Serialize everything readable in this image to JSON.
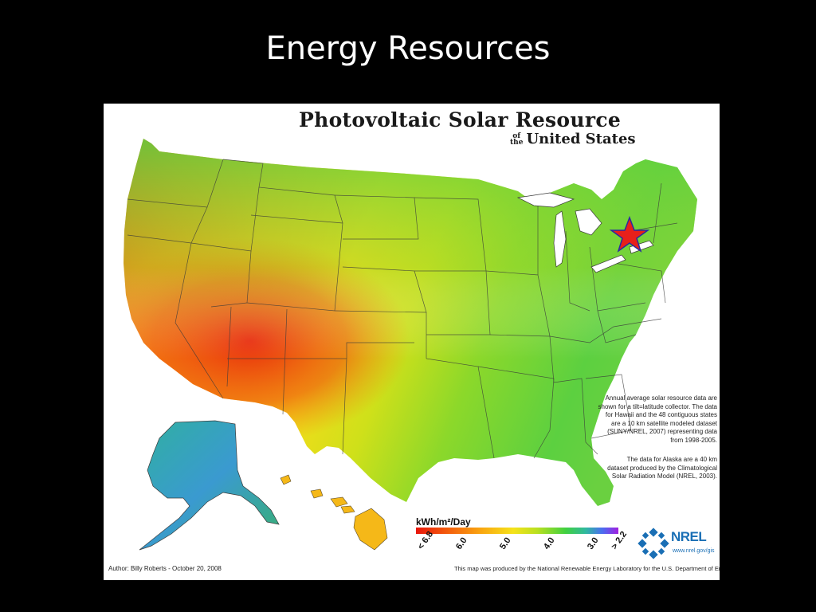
{
  "slide": {
    "title": "Energy Resources"
  },
  "map": {
    "title": "Photovoltaic Solar Resource",
    "subtitle_of": "of",
    "subtitle_the": "the",
    "subtitle_main": "United States",
    "note_primary": "Annual average solar resource data are shown for a tilt=latitude collector. The data for Hawaii and the 48 contiguous states are a 10 km satellite modeled dataset (SUNY/NREL, 2007) representing data from 1998-2005.",
    "note_alaska": "The data for Alaska are a 40 km dataset produced by the Climatological Solar Radiation Model (NREL, 2003).",
    "legend": {
      "title": "kWh/m²/Day",
      "ticks": [
        "< 6.8",
        "6.0",
        "5.0",
        "4.0",
        "3.0",
        "> 2.2"
      ]
    },
    "author": "Author: Billy Roberts - October 20, 2008",
    "credit": "This map was produced by the National Renewable Energy Laboratory for the U.S. Department of Energy.",
    "logo_text": "NREL",
    "logo_url": "www.nrel.gov/gis",
    "marker": {
      "icon": "red-star-icon",
      "color": "#e8201a",
      "outline": "#2a2aa0"
    }
  }
}
